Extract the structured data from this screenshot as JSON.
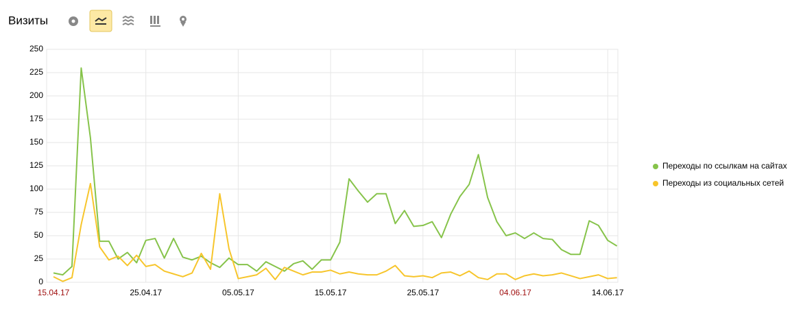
{
  "chart_data": {
    "type": "line",
    "title": "Визиты",
    "categories": [
      "15.04.17",
      null,
      null,
      null,
      null,
      null,
      null,
      null,
      null,
      null,
      "25.04.17",
      null,
      null,
      null,
      null,
      null,
      null,
      null,
      null,
      null,
      "05.05.17",
      null,
      null,
      null,
      null,
      null,
      null,
      null,
      null,
      null,
      "15.05.17",
      null,
      null,
      null,
      null,
      null,
      null,
      null,
      null,
      null,
      "25.05.17",
      null,
      null,
      null,
      null,
      null,
      null,
      null,
      null,
      null,
      "04.06.17",
      null,
      null,
      null,
      null,
      null,
      null,
      null,
      null,
      null,
      "14.06.17",
      null
    ],
    "highlighted_categories": [
      0,
      50
    ],
    "highlight_color": "#a01010",
    "series": [
      {
        "name": "Переходы по ссылкам на сайтах",
        "color": "#86c34a",
        "values": [
          10,
          8,
          17,
          230,
          155,
          44,
          44,
          25,
          32,
          21,
          45,
          47,
          26,
          47,
          27,
          24,
          28,
          21,
          16,
          26,
          19,
          19,
          12,
          22,
          17,
          12,
          20,
          23,
          14,
          24,
          24,
          43,
          111,
          98,
          86,
          95,
          95,
          63,
          77,
          60,
          61,
          65,
          48,
          73,
          92,
          105,
          137,
          91,
          65,
          50,
          53,
          47,
          53,
          47,
          46,
          35,
          30,
          30,
          66,
          61,
          45,
          39
        ]
      },
      {
        "name": "Переходы из социальных сетей",
        "color": "#f7c52b",
        "values": [
          6,
          1,
          5,
          62,
          106,
          38,
          24,
          28,
          18,
          29,
          17,
          19,
          12,
          9,
          6,
          10,
          31,
          14,
          95,
          36,
          4,
          6,
          8,
          15,
          3,
          16,
          12,
          8,
          11,
          11,
          13,
          9,
          11,
          9,
          8,
          8,
          12,
          18,
          7,
          6,
          7,
          5,
          10,
          11,
          7,
          12,
          5,
          3,
          9,
          9,
          3,
          7,
          9,
          7,
          8,
          10,
          7,
          4,
          6,
          8,
          4,
          5
        ]
      }
    ],
    "ylim": [
      0,
      250
    ],
    "yticks": [
      0,
      25,
      50,
      75,
      100,
      125,
      150,
      175,
      200,
      225,
      250
    ],
    "grid": true
  }
}
